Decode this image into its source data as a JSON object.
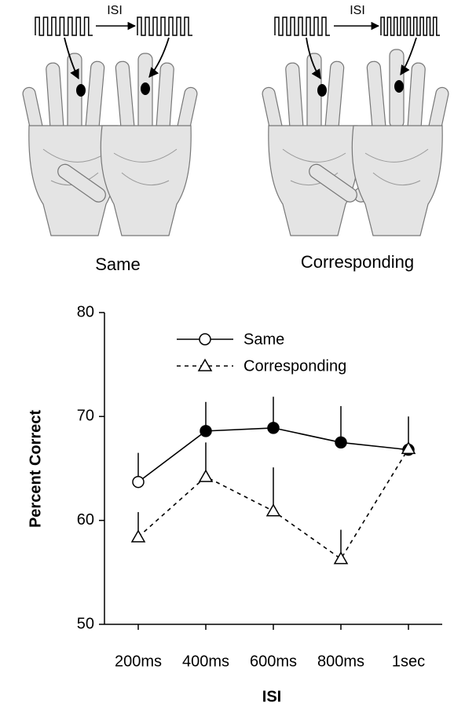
{
  "illustration": {
    "panels": [
      {
        "isi": "ISI",
        "label": "Same"
      },
      {
        "isi": "ISI",
        "label": "Corresponding"
      }
    ]
  },
  "chart_data": {
    "type": "line",
    "categories": [
      "200ms",
      "400ms",
      "600ms",
      "800ms",
      "1sec"
    ],
    "series": [
      {
        "name": "Same",
        "color": "#000000",
        "dash": false,
        "marker": "circle",
        "values": [
          63.7,
          68.6,
          68.9,
          67.5,
          66.8
        ],
        "errors": [
          2.8,
          2.8,
          3.0,
          3.5,
          3.2
        ],
        "filled": [
          false,
          true,
          true,
          true,
          true
        ]
      },
      {
        "name": "Corresponding",
        "color": "#000000",
        "dash": true,
        "marker": "triangle",
        "values": [
          58.4,
          64.2,
          60.9,
          56.3,
          66.9
        ],
        "errors": [
          2.4,
          3.3,
          4.2,
          2.8,
          null
        ],
        "filled": [
          false,
          false,
          false,
          false,
          false
        ]
      }
    ],
    "ylim": [
      50,
      80
    ],
    "yticks": [
      50,
      60,
      70,
      80
    ],
    "xlabel": "ISI",
    "ylabel": "Percent Correct",
    "legend": "upper left",
    "grid": false
  }
}
